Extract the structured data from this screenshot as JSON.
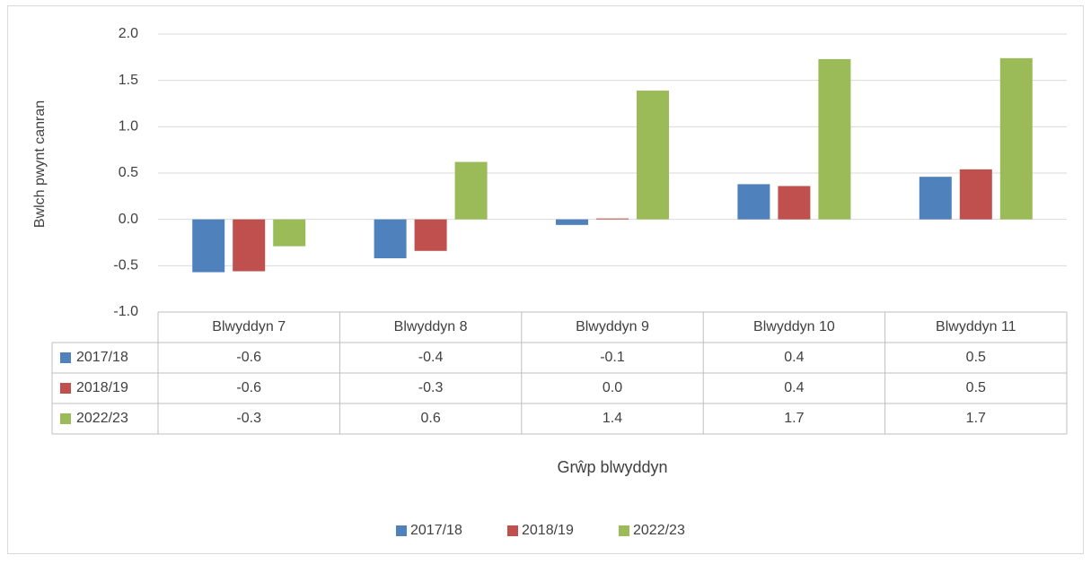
{
  "chart_data": {
    "type": "bar",
    "y_label": "Bwlch pwynt canran",
    "x_label": "Grŵp blwyddyn",
    "categories": [
      "Blwyddyn 7",
      "Blwyddyn 8",
      "Blwyddyn 9",
      "Blwyddyn 10",
      "Blwyddyn 11"
    ],
    "series": [
      {
        "name": "2017/18",
        "color": "#4f81bd",
        "values": [
          -0.57,
          -0.42,
          -0.06,
          0.38,
          0.46
        ],
        "value_labels": [
          "-0.6",
          "-0.4",
          "-0.1",
          "0.4",
          "0.5"
        ]
      },
      {
        "name": "2018/19",
        "color": "#c0504d",
        "values": [
          -0.56,
          -0.34,
          0.01,
          0.36,
          0.54
        ],
        "value_labels": [
          "-0.6",
          "-0.3",
          "0.0",
          "0.4",
          "0.5"
        ]
      },
      {
        "name": "2022/23",
        "color": "#9bbb59",
        "values": [
          -0.29,
          0.62,
          1.39,
          1.73,
          1.74
        ],
        "value_labels": [
          "-0.3",
          "0.6",
          "1.4",
          "1.7",
          "1.7"
        ]
      }
    ],
    "ylim": [
      -1,
      2
    ],
    "yticks": [
      {
        "value": -1,
        "label": "-1.0"
      },
      -0.5,
      {
        "value": 0,
        "label": "0.0"
      },
      0.5,
      {
        "value": 1,
        "label": "1.0"
      },
      1.5,
      {
        "value": 2,
        "label": "2.0"
      }
    ],
    "grid": true,
    "legend": "bottom"
  }
}
